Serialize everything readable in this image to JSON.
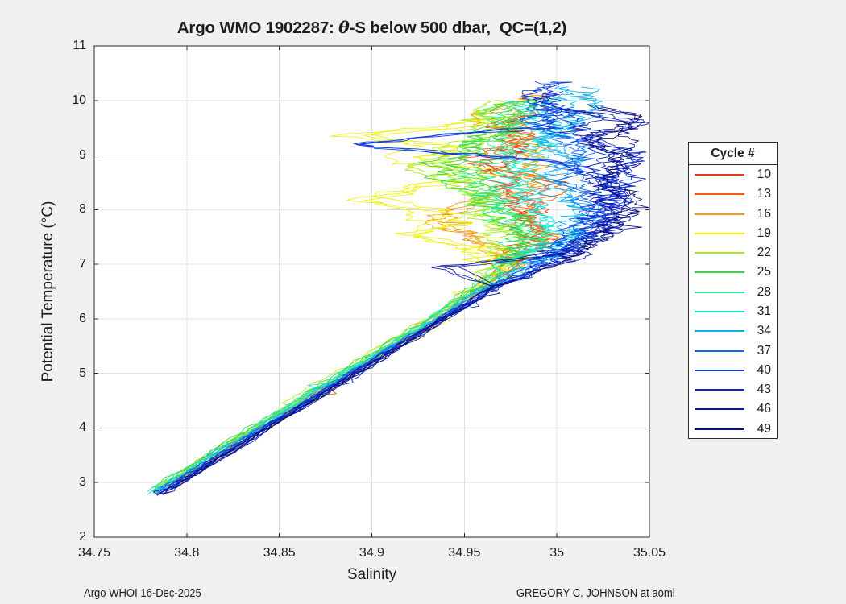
{
  "figure": {
    "bg": "#f0f0f0",
    "plot_bg": "#ffffff",
    "grid_color": "#e0e0e0",
    "axis_color": "#262626",
    "text_color": "#1c1c1c",
    "legend_border": "#2b2b2b"
  },
  "title": {
    "part1": "Argo WMO 1902287: ",
    "theta": "θ",
    "part2": "-S below 500 dbar,  QC=(1,2)"
  },
  "axes": {
    "xlabel": "Salinity",
    "ylabel": "Potential Temperature (°C)",
    "x_ticks": [
      {
        "v": 34.75,
        "label": "34.75"
      },
      {
        "v": 34.8,
        "label": "34.8"
      },
      {
        "v": 34.85,
        "label": "34.85"
      },
      {
        "v": 34.9,
        "label": "34.9"
      },
      {
        "v": 34.95,
        "label": "34.95"
      },
      {
        "v": 35,
        "label": "35"
      },
      {
        "v": 35.05,
        "label": "35.05"
      }
    ],
    "y_ticks": [
      {
        "v": 2,
        "label": "2"
      },
      {
        "v": 3,
        "label": "3"
      },
      {
        "v": 4,
        "label": "4"
      },
      {
        "v": 5,
        "label": "5"
      },
      {
        "v": 6,
        "label": "6"
      },
      {
        "v": 7,
        "label": "7"
      },
      {
        "v": 8,
        "label": "8"
      },
      {
        "v": 9,
        "label": "9"
      },
      {
        "v": 10,
        "label": "10"
      },
      {
        "v": 11,
        "label": "11"
      }
    ]
  },
  "annotations": {
    "left": "Argo WHOI 16-Dec-2025",
    "right": "GREGORY C. JOHNSON at aoml"
  },
  "legend": {
    "title": "Cycle #",
    "entries": [
      "10",
      "13",
      "16",
      "19",
      "22",
      "25",
      "28",
      "31",
      "34",
      "37",
      "40",
      "43",
      "46",
      "49"
    ]
  },
  "chart_data": {
    "type": "line",
    "title": "Argo WMO 1902287: θ-S below 500 dbar,  QC=(1,2)",
    "xlabel": "Salinity",
    "ylabel": "Potential Temperature (°C)",
    "xlim": [
      34.75,
      35.05
    ],
    "ylim": [
      2,
      11
    ],
    "grid": true,
    "legend_title": "Cycle #",
    "legend_position": "right-outside",
    "series": [
      {
        "name": "10",
        "color": "#ea3a18",
        "wiggle": 1.0,
        "anchors_ts": [
          [
            3.05,
            34.795
          ],
          [
            4,
            34.84
          ],
          [
            5,
            34.888
          ],
          [
            6,
            34.936
          ],
          [
            6.6,
            34.962
          ],
          [
            7.0,
            34.975
          ],
          [
            7.6,
            34.99
          ],
          [
            8.2,
            34.975
          ],
          [
            8.8,
            34.968
          ],
          [
            9.2,
            34.985
          ],
          [
            9.55,
            34.97
          ],
          [
            9.9,
            34.99
          ]
        ]
      },
      {
        "name": "13",
        "color": "#f85f0c",
        "wiggle": 1.0,
        "anchors_ts": [
          [
            3.0,
            34.794
          ],
          [
            4,
            34.841
          ],
          [
            5,
            34.889
          ],
          [
            6,
            34.937
          ],
          [
            6.6,
            34.963
          ],
          [
            7.0,
            34.98
          ],
          [
            7.5,
            34.995
          ],
          [
            8.0,
            34.985
          ],
          [
            8.5,
            34.997
          ],
          [
            8.9,
            34.955
          ],
          [
            9.3,
            34.99
          ],
          [
            9.62,
            34.972
          ]
        ]
      },
      {
        "name": "16",
        "color": "#f9980a",
        "wiggle": 1.1,
        "anchors_ts": [
          [
            2.95,
            34.789
          ],
          [
            4,
            34.839
          ],
          [
            5,
            34.887
          ],
          [
            6,
            34.935
          ],
          [
            6.6,
            34.96
          ],
          [
            7.0,
            34.975
          ],
          [
            7.4,
            34.958
          ],
          [
            7.8,
            34.938
          ],
          [
            8.1,
            34.952
          ],
          [
            8.45,
            34.985
          ],
          [
            8.9,
            34.99
          ],
          [
            9.4,
            34.975
          ],
          [
            9.7,
            34.962
          ],
          [
            10.15,
            34.995
          ]
        ]
      },
      {
        "name": "19",
        "color": "#eff10a",
        "wiggle": 1.4,
        "anchors_ts": [
          [
            2.9,
            34.79
          ],
          [
            4,
            34.842
          ],
          [
            5,
            34.89
          ],
          [
            6,
            34.938
          ],
          [
            6.6,
            34.958
          ],
          [
            7.0,
            34.968
          ],
          [
            7.35,
            34.945
          ],
          [
            7.55,
            34.92
          ],
          [
            7.75,
            34.945
          ],
          [
            8.0,
            34.93
          ],
          [
            8.18,
            34.897
          ],
          [
            8.45,
            34.93
          ],
          [
            8.7,
            34.955
          ],
          [
            8.95,
            34.92
          ],
          [
            9.15,
            34.945
          ],
          [
            9.35,
            34.895
          ],
          [
            9.5,
            34.94
          ],
          [
            9.7,
            34.965
          ]
        ]
      },
      {
        "name": "22",
        "color": "#a9ec19",
        "wiggle": 1.3,
        "anchors_ts": [
          [
            2.85,
            34.781
          ],
          [
            4,
            34.836
          ],
          [
            5,
            34.884
          ],
          [
            6,
            34.932
          ],
          [
            6.6,
            34.956
          ],
          [
            7.0,
            34.97
          ],
          [
            7.5,
            34.972
          ],
          [
            8.0,
            34.958
          ],
          [
            8.5,
            34.945
          ],
          [
            8.8,
            34.93
          ],
          [
            9.1,
            34.95
          ],
          [
            9.5,
            34.965
          ],
          [
            9.8,
            34.958
          ],
          [
            10.0,
            34.972
          ]
        ]
      },
      {
        "name": "25",
        "color": "#32dc3a",
        "wiggle": 1.3,
        "anchors_ts": [
          [
            2.9,
            34.783
          ],
          [
            4,
            34.835
          ],
          [
            5,
            34.883
          ],
          [
            6,
            34.931
          ],
          [
            6.6,
            34.957
          ],
          [
            7.0,
            34.972
          ],
          [
            7.4,
            34.985
          ],
          [
            7.9,
            34.968
          ],
          [
            8.4,
            34.952
          ],
          [
            8.9,
            34.944
          ],
          [
            9.3,
            34.96
          ],
          [
            9.7,
            34.972
          ],
          [
            10.0,
            34.98
          ]
        ]
      },
      {
        "name": "28",
        "color": "#29ea8f",
        "wiggle": 1.25,
        "anchors_ts": [
          [
            2.85,
            34.782
          ],
          [
            4,
            34.837
          ],
          [
            5,
            34.885
          ],
          [
            6,
            34.933
          ],
          [
            6.6,
            34.958
          ],
          [
            7.0,
            34.974
          ],
          [
            7.5,
            34.99
          ],
          [
            8.0,
            34.972
          ],
          [
            8.5,
            34.963
          ],
          [
            9.0,
            34.97
          ],
          [
            9.4,
            34.98
          ],
          [
            9.75,
            34.968
          ],
          [
            10.0,
            34.985
          ]
        ]
      },
      {
        "name": "31",
        "color": "#18e5d8",
        "wiggle": 1.15,
        "anchors_ts": [
          [
            2.8,
            34.781
          ],
          [
            4,
            34.838
          ],
          [
            5,
            34.886
          ],
          [
            6,
            34.934
          ],
          [
            6.6,
            34.96
          ],
          [
            7.0,
            34.978
          ],
          [
            7.5,
            35.0
          ],
          [
            8.0,
            34.988
          ],
          [
            8.5,
            34.978
          ],
          [
            9.0,
            34.99
          ],
          [
            9.45,
            34.995
          ],
          [
            9.75,
            34.985
          ],
          [
            10.05,
            34.99
          ]
        ]
      },
      {
        "name": "34",
        "color": "#0fb0f2",
        "wiggle": 1.1,
        "anchors_ts": [
          [
            2.82,
            34.783
          ],
          [
            4,
            34.839
          ],
          [
            5,
            34.887
          ],
          [
            6,
            34.935
          ],
          [
            6.6,
            34.961
          ],
          [
            7.0,
            34.982
          ],
          [
            7.4,
            35.005
          ],
          [
            7.9,
            35.015
          ],
          [
            8.4,
            34.995
          ],
          [
            8.9,
            35.005
          ],
          [
            9.3,
            34.99
          ],
          [
            9.55,
            35.01
          ],
          [
            9.95,
            35.015
          ],
          [
            10.25,
            35.005
          ]
        ]
      },
      {
        "name": "37",
        "color": "#0a69ee",
        "wiggle": 1.0,
        "anchors_ts": [
          [
            2.85,
            34.786
          ],
          [
            4,
            34.841
          ],
          [
            5,
            34.889
          ],
          [
            6,
            34.937
          ],
          [
            6.6,
            34.965
          ],
          [
            7.0,
            34.99
          ],
          [
            7.5,
            35.01
          ],
          [
            8.0,
            35.02
          ],
          [
            8.6,
            35.005
          ],
          [
            9.0,
            35.015
          ],
          [
            9.4,
            35.0
          ],
          [
            9.7,
            34.99
          ],
          [
            9.95,
            34.995
          ]
        ]
      },
      {
        "name": "40",
        "color": "#0a3ae2",
        "wiggle": 1.0,
        "anchors_ts": [
          [
            2.8,
            34.785
          ],
          [
            4,
            34.842
          ],
          [
            5,
            34.89
          ],
          [
            6,
            34.938
          ],
          [
            6.6,
            34.967
          ],
          [
            7.0,
            34.995
          ],
          [
            7.6,
            35.012
          ],
          [
            8.2,
            35.025
          ],
          [
            8.6,
            35.03
          ],
          [
            8.9,
            35.0
          ],
          [
            9.05,
            34.94
          ],
          [
            9.2,
            34.885
          ],
          [
            9.35,
            34.93
          ],
          [
            9.5,
            34.99
          ],
          [
            9.8,
            35.0
          ],
          [
            10.1,
            34.99
          ],
          [
            10.35,
            35.0
          ]
        ]
      },
      {
        "name": "43",
        "color": "#0827cd",
        "wiggle": 0.95,
        "anchors_ts": [
          [
            2.82,
            34.787
          ],
          [
            4,
            34.843
          ],
          [
            5,
            34.891
          ],
          [
            6,
            34.939
          ],
          [
            6.6,
            34.968
          ],
          [
            7.0,
            35.0
          ],
          [
            7.5,
            35.02
          ],
          [
            8.0,
            35.03
          ],
          [
            8.5,
            35.035
          ],
          [
            9.0,
            35.04
          ],
          [
            9.4,
            35.01
          ],
          [
            9.7,
            35.015
          ],
          [
            9.9,
            35.0
          ],
          [
            10.15,
            34.995
          ]
        ]
      },
      {
        "name": "46",
        "color": "#0718aa",
        "wiggle": 0.9,
        "anchors_ts": [
          [
            2.78,
            34.785
          ],
          [
            4,
            34.843
          ],
          [
            5,
            34.891
          ],
          [
            6,
            34.939
          ],
          [
            6.6,
            34.965
          ],
          [
            6.95,
            34.94
          ],
          [
            7.2,
            35.0
          ],
          [
            7.6,
            35.025
          ],
          [
            8.0,
            35.03
          ],
          [
            8.5,
            35.025
          ],
          [
            9.0,
            35.035
          ],
          [
            9.3,
            35.02
          ],
          [
            9.6,
            35.045
          ],
          [
            9.85,
            35.005
          ]
        ]
      },
      {
        "name": "49",
        "color": "#070f85",
        "wiggle": 0.85,
        "anchors_ts": [
          [
            2.78,
            34.786
          ],
          [
            4,
            34.844
          ],
          [
            5,
            34.892
          ],
          [
            6,
            34.94
          ],
          [
            6.6,
            34.969
          ],
          [
            7.0,
            35.0
          ],
          [
            7.4,
            35.02
          ],
          [
            7.9,
            35.035
          ],
          [
            8.4,
            35.03
          ],
          [
            8.8,
            35.04
          ],
          [
            9.2,
            35.03
          ],
          [
            9.45,
            35.035
          ],
          [
            9.7,
            35.04
          ],
          [
            9.9,
            35.015
          ]
        ]
      }
    ],
    "render": {
      "seed": 1902287,
      "variants": 3,
      "variant_offset": 0.0022,
      "dt_low": 0.06,
      "dt_high": 0.031,
      "amp_low": 0.0017,
      "amp_high": 0.0062,
      "ar": 0.74,
      "spike_prob": 0.05,
      "spike_mag": 0.011,
      "low_spike_prob": 0.02,
      "low_spike_mag": 0.006,
      "t_jitter": 0.018
    }
  }
}
